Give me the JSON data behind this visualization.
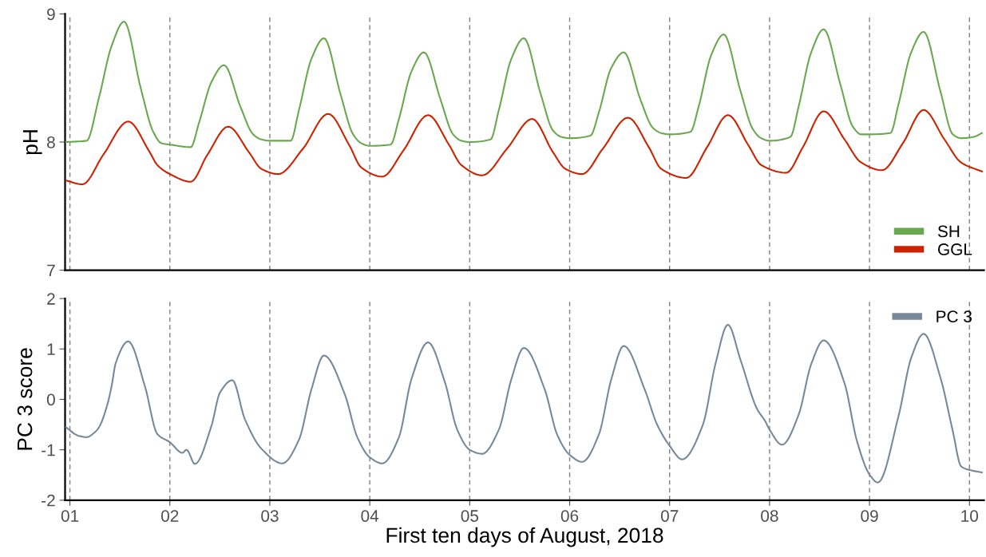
{
  "chart_data": [
    {
      "type": "line",
      "ylabel": "pH",
      "xlim": [
        "2018-07-31T22:50",
        "2018-08-10T03:30"
      ],
      "ylim": [
        7,
        9
      ],
      "yticks": [
        7,
        8,
        9
      ],
      "tick_labels": "y",
      "grid": false,
      "legend": "bottom right",
      "line_style": "solid",
      "marker": "none",
      "ref_lines": [
        {
          "axis": "x",
          "value": "2018-08-01",
          "color": "#808080",
          "line_style": "dashed"
        },
        {
          "axis": "x",
          "value": "2018-08-02",
          "color": "#808080",
          "line_style": "dashed"
        },
        {
          "axis": "x",
          "value": "2018-08-03",
          "color": "#808080",
          "line_style": "dashed"
        },
        {
          "axis": "x",
          "value": "2018-08-04",
          "color": "#808080",
          "line_style": "dashed"
        },
        {
          "axis": "x",
          "value": "2018-08-05",
          "color": "#808080",
          "line_style": "dashed"
        },
        {
          "axis": "x",
          "value": "2018-08-06",
          "color": "#808080",
          "line_style": "dashed"
        },
        {
          "axis": "x",
          "value": "2018-08-07",
          "color": "#808080",
          "line_style": "dashed"
        },
        {
          "axis": "x",
          "value": "2018-08-08",
          "color": "#808080",
          "line_style": "dashed"
        },
        {
          "axis": "x",
          "value": "2018-08-09",
          "color": "#808080",
          "line_style": "dashed"
        },
        {
          "axis": "x",
          "value": "2018-08-10",
          "color": "#808080",
          "line_style": "dashed"
        }
      ],
      "series": [
        {
          "name": "SH",
          "color": "#6aa84f",
          "x": [
            "2018-07-31T23:00",
            "2018-08-01T04:00",
            "2018-08-01T07:00",
            "2018-08-01T10:00",
            "2018-08-01T13:00",
            "2018-08-01T17:00",
            "2018-08-01T20:00",
            "2018-08-01T22:00",
            "2018-08-02T00:00",
            "2018-08-02T05:00",
            "2018-08-02T07:00",
            "2018-08-02T10:00",
            "2018-08-02T13:00",
            "2018-08-02T17:00",
            "2018-08-02T20:00",
            "2018-08-02T22:00",
            "2018-08-03T00:00",
            "2018-08-03T05:00",
            "2018-08-03T07:00",
            "2018-08-03T10:00",
            "2018-08-03T13:00",
            "2018-08-03T17:00",
            "2018-08-03T20:00",
            "2018-08-03T22:00",
            "2018-08-04T00:00",
            "2018-08-04T05:00",
            "2018-08-04T07:00",
            "2018-08-04T10:00",
            "2018-08-04T13:00",
            "2018-08-04T17:00",
            "2018-08-04T20:00",
            "2018-08-04T22:00",
            "2018-08-05T00:00",
            "2018-08-05T05:00",
            "2018-08-05T07:00",
            "2018-08-05T10:00",
            "2018-08-05T13:00",
            "2018-08-05T17:00",
            "2018-08-05T20:00",
            "2018-08-05T22:00",
            "2018-08-06T00:00",
            "2018-08-06T05:00",
            "2018-08-06T07:00",
            "2018-08-06T10:00",
            "2018-08-06T13:00",
            "2018-08-06T17:00",
            "2018-08-06T20:00",
            "2018-08-06T22:00",
            "2018-08-07T00:00",
            "2018-08-07T05:00",
            "2018-08-07T07:00",
            "2018-08-07T10:00",
            "2018-08-07T13:00",
            "2018-08-07T17:00",
            "2018-08-07T20:00",
            "2018-08-07T22:00",
            "2018-08-08T00:00",
            "2018-08-08T05:00",
            "2018-08-08T07:00",
            "2018-08-08T10:00",
            "2018-08-08T13:00",
            "2018-08-08T17:00",
            "2018-08-08T20:00",
            "2018-08-08T22:00",
            "2018-08-09T00:00",
            "2018-08-09T05:00",
            "2018-08-09T07:00",
            "2018-08-09T10:00",
            "2018-08-09T13:00",
            "2018-08-09T17:00",
            "2018-08-09T20:00",
            "2018-08-09T22:00",
            "2018-08-10T01:00",
            "2018-08-10T03:00"
          ],
          "values": [
            8.0,
            8.01,
            8.35,
            8.75,
            8.94,
            8.42,
            8.08,
            7.99,
            7.98,
            7.96,
            8.15,
            8.47,
            8.6,
            8.27,
            8.06,
            8.02,
            8.01,
            8.01,
            8.25,
            8.65,
            8.81,
            8.37,
            8.06,
            7.99,
            7.97,
            7.98,
            8.18,
            8.55,
            8.7,
            8.33,
            8.06,
            8.01,
            8.0,
            8.02,
            8.25,
            8.65,
            8.81,
            8.38,
            8.09,
            8.04,
            8.03,
            8.05,
            8.23,
            8.58,
            8.7,
            8.33,
            8.11,
            8.07,
            8.06,
            8.08,
            8.28,
            8.68,
            8.84,
            8.4,
            8.1,
            8.03,
            8.01,
            8.04,
            8.28,
            8.7,
            8.88,
            8.45,
            8.12,
            8.06,
            8.06,
            8.07,
            8.3,
            8.7,
            8.86,
            8.4,
            8.06,
            8.03,
            8.04,
            8.07
          ]
        },
        {
          "name": "GGL",
          "color": "#cc2200",
          "x": [
            "2018-07-31T23:00",
            "2018-08-01T03:00",
            "2018-08-01T08:00",
            "2018-08-01T14:00",
            "2018-08-01T19:00",
            "2018-08-01T21:00",
            "2018-08-02T00:00",
            "2018-08-02T05:00",
            "2018-08-02T09:00",
            "2018-08-02T14:00",
            "2018-08-02T19:00",
            "2018-08-02T22:00",
            "2018-08-03T02:00",
            "2018-08-03T08:00",
            "2018-08-03T14:00",
            "2018-08-03T19:00",
            "2018-08-03T22:00",
            "2018-08-04T03:00",
            "2018-08-04T08:00",
            "2018-08-04T14:00",
            "2018-08-04T19:00",
            "2018-08-04T22:00",
            "2018-08-05T03:00",
            "2018-08-05T09:00",
            "2018-08-05T15:00",
            "2018-08-05T20:00",
            "2018-08-05T23:00",
            "2018-08-06T03:00",
            "2018-08-06T08:00",
            "2018-08-06T14:00",
            "2018-08-06T19:00",
            "2018-08-06T22:00",
            "2018-08-07T04:00",
            "2018-08-07T09:00",
            "2018-08-07T14:00",
            "2018-08-07T19:00",
            "2018-08-07T22:00",
            "2018-08-08T04:00",
            "2018-08-08T08:00",
            "2018-08-08T13:00",
            "2018-08-08T18:00",
            "2018-08-08T22:00",
            "2018-08-09T03:00",
            "2018-08-09T08:00",
            "2018-08-09T13:00",
            "2018-08-09T18:00",
            "2018-08-09T22:00",
            "2018-08-10T03:00"
          ],
          "values": [
            7.7,
            7.67,
            7.9,
            8.16,
            7.93,
            7.82,
            7.75,
            7.69,
            7.9,
            8.12,
            7.92,
            7.79,
            7.75,
            7.95,
            8.22,
            7.98,
            7.8,
            7.73,
            7.93,
            8.21,
            7.98,
            7.82,
            7.74,
            7.95,
            8.18,
            7.92,
            7.79,
            7.75,
            7.95,
            8.19,
            7.96,
            7.79,
            7.72,
            7.96,
            8.21,
            7.97,
            7.82,
            7.76,
            7.96,
            8.24,
            8.02,
            7.84,
            7.78,
            7.99,
            8.25,
            8.02,
            7.84,
            7.77
          ]
        }
      ]
    },
    {
      "type": "line",
      "ylabel": "PC 3 score",
      "xlabel": "First ten days of August, 2018",
      "xlim": [
        "2018-07-31T22:50",
        "2018-08-10T03:30"
      ],
      "ylim": [
        -2,
        2
      ],
      "yticks": [
        -2,
        -1,
        0,
        1,
        2
      ],
      "xticks": [
        {
          "value": "2018-08-01",
          "label": "01"
        },
        {
          "value": "2018-08-02",
          "label": "02"
        },
        {
          "value": "2018-08-03",
          "label": "03"
        },
        {
          "value": "2018-08-04",
          "label": "04"
        },
        {
          "value": "2018-08-05",
          "label": "05"
        },
        {
          "value": "2018-08-06",
          "label": "06"
        },
        {
          "value": "2018-08-07",
          "label": "07"
        },
        {
          "value": "2018-08-08",
          "label": "08"
        },
        {
          "value": "2018-08-09",
          "label": "09"
        },
        {
          "value": "2018-08-10",
          "label": "10"
        }
      ],
      "grid": false,
      "legend": "top right",
      "line_style": "solid",
      "marker": "none",
      "ref_lines": [
        {
          "axis": "x",
          "value": "2018-08-01",
          "color": "#808080",
          "line_style": "dashed"
        },
        {
          "axis": "x",
          "value": "2018-08-02",
          "color": "#808080",
          "line_style": "dashed"
        },
        {
          "axis": "x",
          "value": "2018-08-03",
          "color": "#808080",
          "line_style": "dashed"
        },
        {
          "axis": "x",
          "value": "2018-08-04",
          "color": "#808080",
          "line_style": "dashed"
        },
        {
          "axis": "x",
          "value": "2018-08-05",
          "color": "#808080",
          "line_style": "dashed"
        },
        {
          "axis": "x",
          "value": "2018-08-06",
          "color": "#808080",
          "line_style": "dashed"
        },
        {
          "axis": "x",
          "value": "2018-08-07",
          "color": "#808080",
          "line_style": "dashed"
        },
        {
          "axis": "x",
          "value": "2018-08-08",
          "color": "#808080",
          "line_style": "dashed"
        },
        {
          "axis": "x",
          "value": "2018-08-09",
          "color": "#808080",
          "line_style": "dashed"
        },
        {
          "axis": "x",
          "value": "2018-08-10",
          "color": "#808080",
          "line_style": "dashed"
        }
      ],
      "series": [
        {
          "name": "PC 3",
          "color": "#778899",
          "x": [
            "2018-07-31T23:00",
            "2018-08-01T02:00",
            "2018-08-01T04:00",
            "2018-08-01T06:00",
            "2018-08-01T07:00",
            "2018-08-01T09:00",
            "2018-08-01T10:00",
            "2018-08-01T11:00",
            "2018-08-01T14:00",
            "2018-08-01T18:00",
            "2018-08-01T21:00",
            "2018-08-02T00:00",
            "2018-08-02T03:00",
            "2018-08-02T04:00",
            "2018-08-02T06:00",
            "2018-08-02T10:00",
            "2018-08-02T12:00",
            "2018-08-02T15:00",
            "2018-08-02T18:00",
            "2018-08-02T22:00",
            "2018-08-03T03:00",
            "2018-08-03T07:00",
            "2018-08-03T10:00",
            "2018-08-03T13:00",
            "2018-08-03T18:00",
            "2018-08-03T21:00",
            "2018-08-04T00:00",
            "2018-08-04T03:00",
            "2018-08-04T07:00",
            "2018-08-04T10:00",
            "2018-08-04T14:00",
            "2018-08-04T18:00",
            "2018-08-04T21:00",
            "2018-08-05T00:00",
            "2018-08-05T03:00",
            "2018-08-05T07:00",
            "2018-08-05T10:00",
            "2018-08-05T13:00",
            "2018-08-05T18:00",
            "2018-08-05T21:00",
            "2018-08-06T00:00",
            "2018-08-06T03:00",
            "2018-08-06T07:00",
            "2018-08-06T10:00",
            "2018-08-06T13:00",
            "2018-08-06T18:00",
            "2018-08-06T21:00",
            "2018-08-07T00:00",
            "2018-08-07T03:00",
            "2018-08-07T08:00",
            "2018-08-07T11:00",
            "2018-08-07T14:00",
            "2018-08-07T17:00",
            "2018-08-07T21:00",
            "2018-08-07T23:00",
            "2018-08-08T00:00",
            "2018-08-08T03:00",
            "2018-08-08T07:00",
            "2018-08-08T10:00",
            "2018-08-08T13:00",
            "2018-08-08T18:00",
            "2018-08-08T21:00",
            "2018-08-09T00:00",
            "2018-08-09T02:00",
            "2018-08-09T07:00",
            "2018-08-09T10:00",
            "2018-08-09T13:00",
            "2018-08-09T17:00",
            "2018-08-09T20:00",
            "2018-08-09T22:00",
            "2018-08-10T00:00",
            "2018-08-10T03:00"
          ],
          "values": [
            -0.55,
            -0.72,
            -0.75,
            -0.65,
            -0.55,
            -0.1,
            0.26,
            0.72,
            1.15,
            0.26,
            -0.69,
            -0.85,
            -1.06,
            -1.0,
            -1.28,
            -0.52,
            0.13,
            0.38,
            -0.39,
            -0.98,
            -1.27,
            -0.8,
            0.2,
            0.87,
            0.1,
            -0.75,
            -1.15,
            -1.27,
            -0.75,
            0.4,
            1.13,
            0.35,
            -0.6,
            -1.0,
            -1.08,
            -0.6,
            0.4,
            1.02,
            0.2,
            -0.7,
            -1.1,
            -1.24,
            -0.7,
            0.4,
            1.06,
            0.2,
            -0.5,
            -0.92,
            -1.19,
            -0.5,
            0.7,
            1.48,
            0.79,
            -0.19,
            -0.44,
            -0.6,
            -0.9,
            -0.3,
            0.7,
            1.17,
            0.32,
            -0.83,
            -1.49,
            -1.65,
            -0.32,
            0.82,
            1.3,
            0.44,
            -0.63,
            -1.33,
            -1.4,
            -1.45
          ]
        }
      ]
    }
  ]
}
